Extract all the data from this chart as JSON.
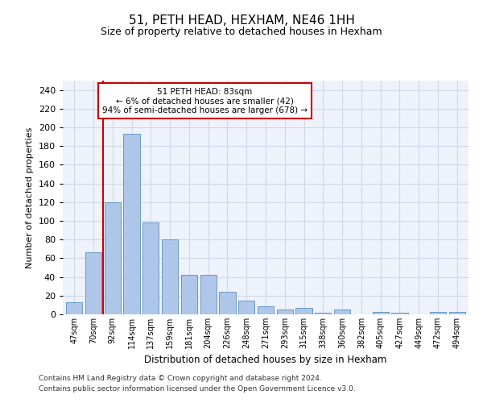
{
  "title": "51, PETH HEAD, HEXHAM, NE46 1HH",
  "subtitle": "Size of property relative to detached houses in Hexham",
  "xlabel": "Distribution of detached houses by size in Hexham",
  "ylabel": "Number of detached properties",
  "categories": [
    "47sqm",
    "70sqm",
    "92sqm",
    "114sqm",
    "137sqm",
    "159sqm",
    "181sqm",
    "204sqm",
    "226sqm",
    "248sqm",
    "271sqm",
    "293sqm",
    "315sqm",
    "338sqm",
    "360sqm",
    "382sqm",
    "405sqm",
    "427sqm",
    "449sqm",
    "472sqm",
    "494sqm"
  ],
  "values": [
    13,
    66,
    120,
    193,
    98,
    80,
    42,
    42,
    24,
    15,
    9,
    5,
    7,
    2,
    5,
    0,
    3,
    2,
    0,
    3,
    3
  ],
  "bar_color": "#aec6e8",
  "bar_edge_color": "#5a8fc2",
  "vline_x_index": 1.5,
  "vline_color": "#cc0000",
  "annotation_line1": "51 PETH HEAD: 83sqm",
  "annotation_line2": "← 6% of detached houses are smaller (42)",
  "annotation_line3": "94% of semi-detached houses are larger (678) →",
  "annotation_box_color": "#ffffff",
  "annotation_box_edge_color": "#cc0000",
  "ylim": [
    0,
    250
  ],
  "yticks": [
    0,
    20,
    40,
    60,
    80,
    100,
    120,
    140,
    160,
    180,
    200,
    220,
    240
  ],
  "grid_color": "#d0d8e8",
  "background_color": "#eef2fb",
  "footnote1": "Contains HM Land Registry data © Crown copyright and database right 2024.",
  "footnote2": "Contains public sector information licensed under the Open Government Licence v3.0."
}
